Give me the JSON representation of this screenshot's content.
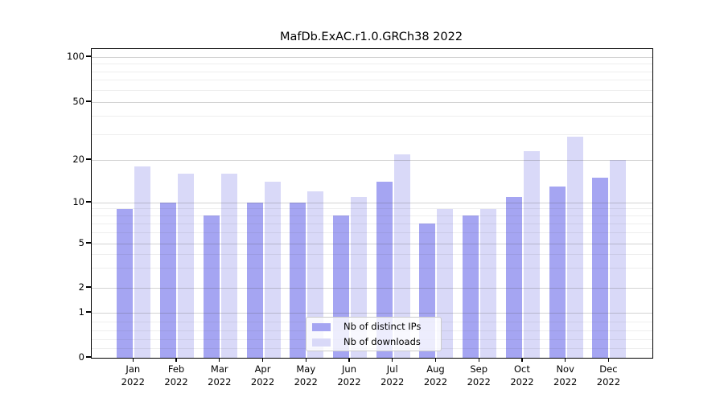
{
  "chart_data": {
    "type": "bar",
    "title": "MafDb.ExAC.r1.0.GRCh38 2022",
    "categories": [
      "Jan",
      "Feb",
      "Mar",
      "Apr",
      "May",
      "Jun",
      "Jul",
      "Aug",
      "Sep",
      "Oct",
      "Nov",
      "Dec"
    ],
    "x_tick_second_line": "2022",
    "series": [
      {
        "name": "Nb of distinct IPs",
        "color": "#a5a5f2",
        "values": [
          9,
          10,
          8,
          10,
          10,
          8,
          14,
          7,
          8,
          11,
          13,
          15
        ]
      },
      {
        "name": "Nb of downloads",
        "color": "#d9d9f8",
        "values": [
          18,
          16,
          16,
          14,
          12,
          11,
          22,
          9,
          9,
          23,
          29,
          20
        ]
      }
    ],
    "yaxis": {
      "scale": "symlog",
      "major_ticks": [
        0,
        1,
        2,
        5,
        10,
        20,
        50,
        100
      ],
      "minor_ticks": [
        0.2,
        0.4,
        0.6,
        0.8,
        3,
        4,
        6,
        7,
        8,
        9,
        30,
        40,
        60,
        70,
        80,
        90
      ],
      "ylim": [
        0,
        113
      ]
    },
    "xlabel": "",
    "ylabel": "",
    "grid": "on",
    "legend_position": "lower center"
  },
  "colors": {
    "axis": "#000000",
    "grid_major": "#cccccc",
    "grid_minor": "#ececec",
    "background": "#ffffff",
    "legend_border": "#cbcbcb"
  }
}
